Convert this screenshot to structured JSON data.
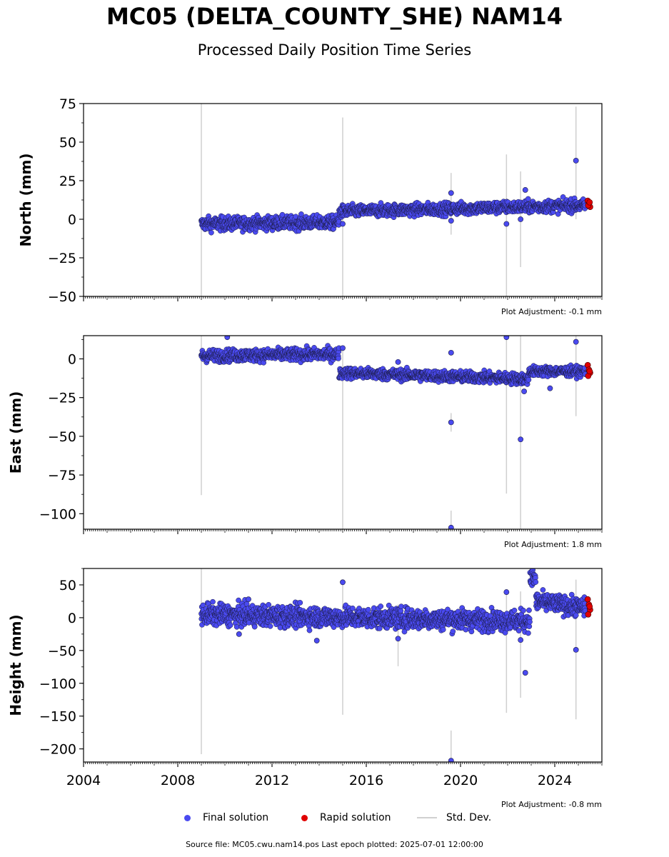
{
  "title": "MC05 (DELTA_COUNTY_SHE) NAM14",
  "subtitle": "Processed Daily Position Time Series",
  "footer": "Source file: MC05.cwu.nam14.pos  Last epoch plotted: 2025-07-01 12:00:00",
  "legend": {
    "final": "Final solution",
    "rapid": "Rapid solution",
    "std": "Std. Dev."
  },
  "colors": {
    "final": "#4a4af0",
    "rapid": "#e00000",
    "std": "#cfcfcf",
    "outline": "#000000"
  },
  "chart_data": [
    {
      "type": "scatter",
      "ylabel": "North (mm)",
      "xlim": [
        2004,
        2026
      ],
      "ylim": [
        -50,
        75
      ],
      "yticks": [
        -50,
        -25,
        0,
        25,
        50,
        75
      ],
      "xtick_labels": [
        "2004",
        "2008",
        "2012",
        "2016",
        "2020",
        "2024"
      ],
      "adjustment": "Plot Adjustment: -0.1 mm",
      "segments": [
        {
          "start": 2009.0,
          "end": 2014.85,
          "level_start": -3,
          "level_end": -2,
          "scatter": 2.2
        },
        {
          "start": 2014.85,
          "end": 2025.3,
          "level_start": 5,
          "level_end": 9,
          "scatter": 2.0
        }
      ],
      "outliers": [
        [
          2015.0,
          -3
        ],
        [
          2019.6,
          17
        ],
        [
          2019.6,
          -1
        ],
        [
          2021.95,
          -3
        ],
        [
          2022.75,
          19
        ],
        [
          2022.55,
          0
        ],
        [
          2024.9,
          38
        ]
      ],
      "stddev_lines": [
        [
          2009.0,
          -50,
          75
        ],
        [
          2015.0,
          -50,
          66
        ],
        [
          2019.6,
          -10,
          30
        ],
        [
          2021.95,
          -50,
          42
        ],
        [
          2022.55,
          -31,
          31
        ],
        [
          2024.9,
          0,
          73
        ]
      ],
      "rapid": [
        [
          2025.4,
          12
        ],
        [
          2025.45,
          10
        ],
        [
          2025.5,
          8
        ],
        [
          2025.42,
          9
        ],
        [
          2025.48,
          11
        ]
      ]
    },
    {
      "type": "scatter",
      "ylabel": "East (mm)",
      "xlim": [
        2004,
        2026
      ],
      "ylim": [
        -110,
        15
      ],
      "yticks": [
        -100,
        -75,
        -50,
        -25,
        0
      ],
      "xtick_labels": [
        "2004",
        "2008",
        "2012",
        "2016",
        "2020",
        "2024"
      ],
      "adjustment": "Plot Adjustment: 1.8 mm",
      "segments": [
        {
          "start": 2009.0,
          "end": 2014.85,
          "level_start": 2,
          "level_end": 3,
          "scatter": 2.0
        },
        {
          "start": 2014.85,
          "end": 2022.9,
          "level_start": -9,
          "level_end": -13,
          "scatter": 1.8
        },
        {
          "start": 2022.9,
          "end": 2025.3,
          "level_start": -8,
          "level_end": -8,
          "scatter": 1.6
        }
      ],
      "outliers": [
        [
          2010.1,
          14
        ],
        [
          2015.0,
          7
        ],
        [
          2017.35,
          -2
        ],
        [
          2019.6,
          4
        ],
        [
          2019.6,
          -41
        ],
        [
          2019.6,
          -109
        ],
        [
          2021.95,
          14
        ],
        [
          2022.55,
          -52
        ],
        [
          2022.7,
          -21
        ],
        [
          2023.8,
          -19
        ],
        [
          2024.9,
          11
        ]
      ],
      "stddev_lines": [
        [
          2009.0,
          -88,
          15
        ],
        [
          2015.0,
          -110,
          8
        ],
        [
          2019.6,
          -47,
          -35
        ],
        [
          2019.6,
          -110,
          -98
        ],
        [
          2021.95,
          -87,
          15
        ],
        [
          2022.55,
          -110,
          15
        ],
        [
          2024.9,
          -37,
          15
        ]
      ],
      "rapid": [
        [
          2025.4,
          -4
        ],
        [
          2025.45,
          -7
        ],
        [
          2025.5,
          -9
        ],
        [
          2025.42,
          -11
        ],
        [
          2025.48,
          -8
        ]
      ]
    },
    {
      "type": "scatter",
      "ylabel": "Height (mm)",
      "xlim": [
        2004,
        2026
      ],
      "ylim": [
        -220,
        75
      ],
      "yticks": [
        -200,
        -150,
        -100,
        -50,
        0,
        50
      ],
      "xtick_labels": [
        "2004",
        "2008",
        "2012",
        "2016",
        "2020",
        "2024"
      ],
      "adjustment": "Plot Adjustment: -0.8 mm",
      "segments": [
        {
          "start": 2009.0,
          "end": 2022.95,
          "level_start": 5,
          "level_end": -5,
          "scatter": 8
        },
        {
          "start": 2022.95,
          "end": 2023.2,
          "level_start": 60,
          "level_end": 60,
          "scatter": 8
        },
        {
          "start": 2023.2,
          "end": 2025.3,
          "level_start": 25,
          "level_end": 15,
          "scatter": 7
        }
      ],
      "outliers": [
        [
          2010.6,
          -25
        ],
        [
          2011.0,
          28
        ],
        [
          2013.9,
          -35
        ],
        [
          2015.0,
          54
        ],
        [
          2017.35,
          -32
        ],
        [
          2019.6,
          -218
        ],
        [
          2021.95,
          39
        ],
        [
          2022.55,
          -34
        ],
        [
          2022.75,
          -84
        ],
        [
          2024.9,
          -49
        ]
      ],
      "stddev_lines": [
        [
          2009.0,
          -208,
          75
        ],
        [
          2015.0,
          -148,
          54
        ],
        [
          2017.35,
          -74,
          20
        ],
        [
          2019.6,
          -220,
          -172
        ],
        [
          2021.95,
          -145,
          39
        ],
        [
          2022.55,
          -122,
          40
        ],
        [
          2024.9,
          -155,
          58
        ]
      ],
      "rapid": [
        [
          2025.4,
          28
        ],
        [
          2025.45,
          20
        ],
        [
          2025.5,
          12
        ],
        [
          2025.42,
          5
        ],
        [
          2025.48,
          17
        ]
      ]
    }
  ]
}
